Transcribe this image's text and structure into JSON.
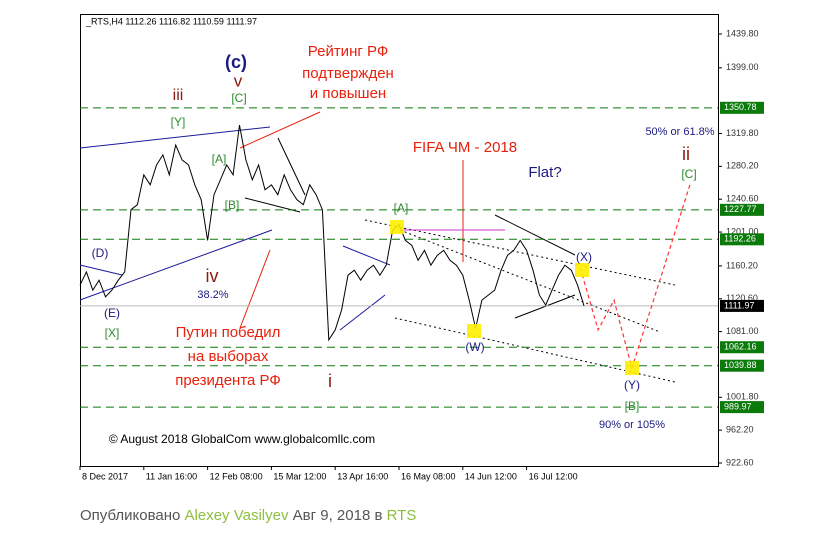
{
  "chart_data": {
    "type": "line",
    "title": "_RTS,H4  1112.26 1116.82 1110.59 1111.97",
    "series": [
      {
        "color": "#000000",
        "line_style": "solid",
        "x": [
          0,
          1,
          2,
          3,
          4,
          5,
          6,
          7,
          8,
          9,
          10,
          11,
          12,
          13,
          14,
          15,
          16,
          17,
          18,
          19,
          20,
          21,
          22,
          23,
          24,
          25,
          26,
          27,
          28,
          29,
          30,
          31,
          32,
          33,
          34,
          35,
          36,
          37,
          38,
          39,
          40,
          41,
          42,
          43,
          44,
          45,
          46,
          47,
          48,
          49,
          50,
          51,
          52,
          53,
          54,
          55,
          56,
          57,
          58,
          59,
          60,
          61,
          62,
          63,
          64,
          65,
          66,
          67,
          68,
          69,
          70,
          71,
          72,
          73,
          74,
          75,
          76,
          77,
          78,
          79
        ],
        "values": [
          1137,
          1153,
          1131,
          1143,
          1123,
          1131,
          1143,
          1153,
          1228,
          1234,
          1270,
          1258,
          1282,
          1294,
          1270,
          1306,
          1288,
          1282,
          1258,
          1240,
          1191,
          1246,
          1264,
          1282,
          1270,
          1330,
          1288,
          1264,
          1282,
          1252,
          1258,
          1246,
          1270,
          1252,
          1240,
          1234,
          1258,
          1246,
          1228,
          1071,
          1083,
          1107,
          1149,
          1155,
          1143,
          1155,
          1161,
          1149,
          1161,
          1203,
          1210,
          1191,
          1185,
          1167,
          1179,
          1161,
          1173,
          1179,
          1167,
          1161,
          1149,
          1119,
          1085,
          1119,
          1125,
          1131,
          1155,
          1173,
          1179,
          1191,
          1179,
          1155,
          1125,
          1113,
          1131,
          1149,
          1161,
          1155,
          1137,
          1112
        ]
      },
      {
        "color": "#ff3333",
        "line_style": "dashed",
        "x": [
          78.4,
          81.2,
          83.7,
          86.5,
          90.9,
          95.6
        ],
        "values": [
          1158,
          1083,
          1119,
          1037,
          1143,
          1258
        ]
      }
    ],
    "xlim": [
      0,
      100
    ],
    "xticks": [
      {
        "value": 0,
        "label": "8 Dec 2017"
      },
      {
        "value": 10,
        "label": "11 Jan 16:00"
      },
      {
        "value": 20,
        "label": "12 Feb 08:00"
      },
      {
        "value": 30,
        "label": "15 Mar 12:00"
      },
      {
        "value": 40,
        "label": "13 Apr 16:00"
      },
      {
        "value": 50,
        "label": "16 May 08:00"
      },
      {
        "value": 60,
        "label": "14 Jun 12:00"
      },
      {
        "value": 70,
        "label": "16 Jul 12:00"
      }
    ],
    "ylim": [
      918.98,
      1463.88
    ],
    "yticks": [
      {
        "value": 1439.8,
        "label": "1439.80"
      },
      {
        "value": 1399,
        "label": "1399.00"
      },
      {
        "value": 1319.8,
        "label": "1319.80"
      },
      {
        "value": 1280.2,
        "label": "1280.20"
      },
      {
        "value": 1240.6,
        "label": "1240.60"
      },
      {
        "value": 1201,
        "label": "1201.00"
      },
      {
        "value": 1160.2,
        "label": "1160.20"
      },
      {
        "value": 1120.6,
        "label": "1120.60"
      },
      {
        "value": 1081,
        "label": "1081.00"
      },
      {
        "value": 1001.8,
        "label": "1001.80"
      },
      {
        "value": 962.2,
        "label": "962.20"
      },
      {
        "value": 922.6,
        "label": "922.60"
      }
    ],
    "levels": [
      1350.78,
      1227.77,
      1192.26,
      1062.16,
      1039.88,
      989.97
    ],
    "level_color": "#0a7a0a",
    "last_price": 1111.97,
    "grid": false,
    "annotations": [
      {
        "text": "Рейтинг РФ",
        "color": "#e8200c"
      },
      {
        "text": "подтвержден",
        "color": "#e8200c"
      },
      {
        "text": "и повышен",
        "color": "#e8200c"
      },
      {
        "text": "(c)",
        "color": "#1a1a80"
      },
      {
        "text": "v",
        "color": "#8b1a10"
      },
      {
        "text": "iii",
        "color": "#8b1a10"
      },
      {
        "text": "[Y]",
        "color": "#2e8b2e"
      },
      {
        "text": "[A]",
        "color": "#2e8b2e"
      },
      {
        "text": "[C]",
        "color": "#2e8b2e"
      },
      {
        "text": "[B]",
        "color": "#2e8b2e"
      },
      {
        "text": "FIFA ЧМ - 2018",
        "color": "#e8200c"
      },
      {
        "text": "Flat?",
        "color": "#1a1a80"
      },
      {
        "text": "[A]",
        "color": "#2e8b2e"
      },
      {
        "text": "(D)",
        "color": "#1a1a80"
      },
      {
        "text": "(E)",
        "color": "#1a1a80"
      },
      {
        "text": "[X]",
        "color": "#2e8b2e"
      },
      {
        "text": "iv",
        "color": "#8b1a10"
      },
      {
        "text": "38.2%",
        "color": "#1a1a80"
      },
      {
        "text": "Путин победил",
        "color": "#e8200c"
      },
      {
        "text": "на выборах",
        "color": "#e8200c"
      },
      {
        "text": "президента РФ",
        "color": "#e8200c"
      },
      {
        "text": "i",
        "color": "#8b1a10"
      },
      {
        "text": "(W)",
        "color": "#1a1a80"
      },
      {
        "text": "(X)",
        "color": "#1a1a80"
      },
      {
        "text": "(Y)",
        "color": "#1a1a80"
      },
      {
        "text": "[B]",
        "color": "#2e8b2e"
      },
      {
        "text": "90% or 105%",
        "color": "#1a1a80"
      },
      {
        "text": "50% or 61.8%",
        "color": "#1a1a80"
      },
      {
        "text": "ii",
        "color": "#8b1a10"
      },
      {
        "text": "[C]",
        "color": "#2e8b2e"
      },
      {
        "text": "© August 2018 GlobalCom www.globalcomllc.com",
        "color": "#000000"
      }
    ]
  },
  "footer": {
    "published": "Опубликовано",
    "author": "Alexey Vasilyev",
    "date": "Авг 9, 2018 в",
    "category": "RTS"
  }
}
